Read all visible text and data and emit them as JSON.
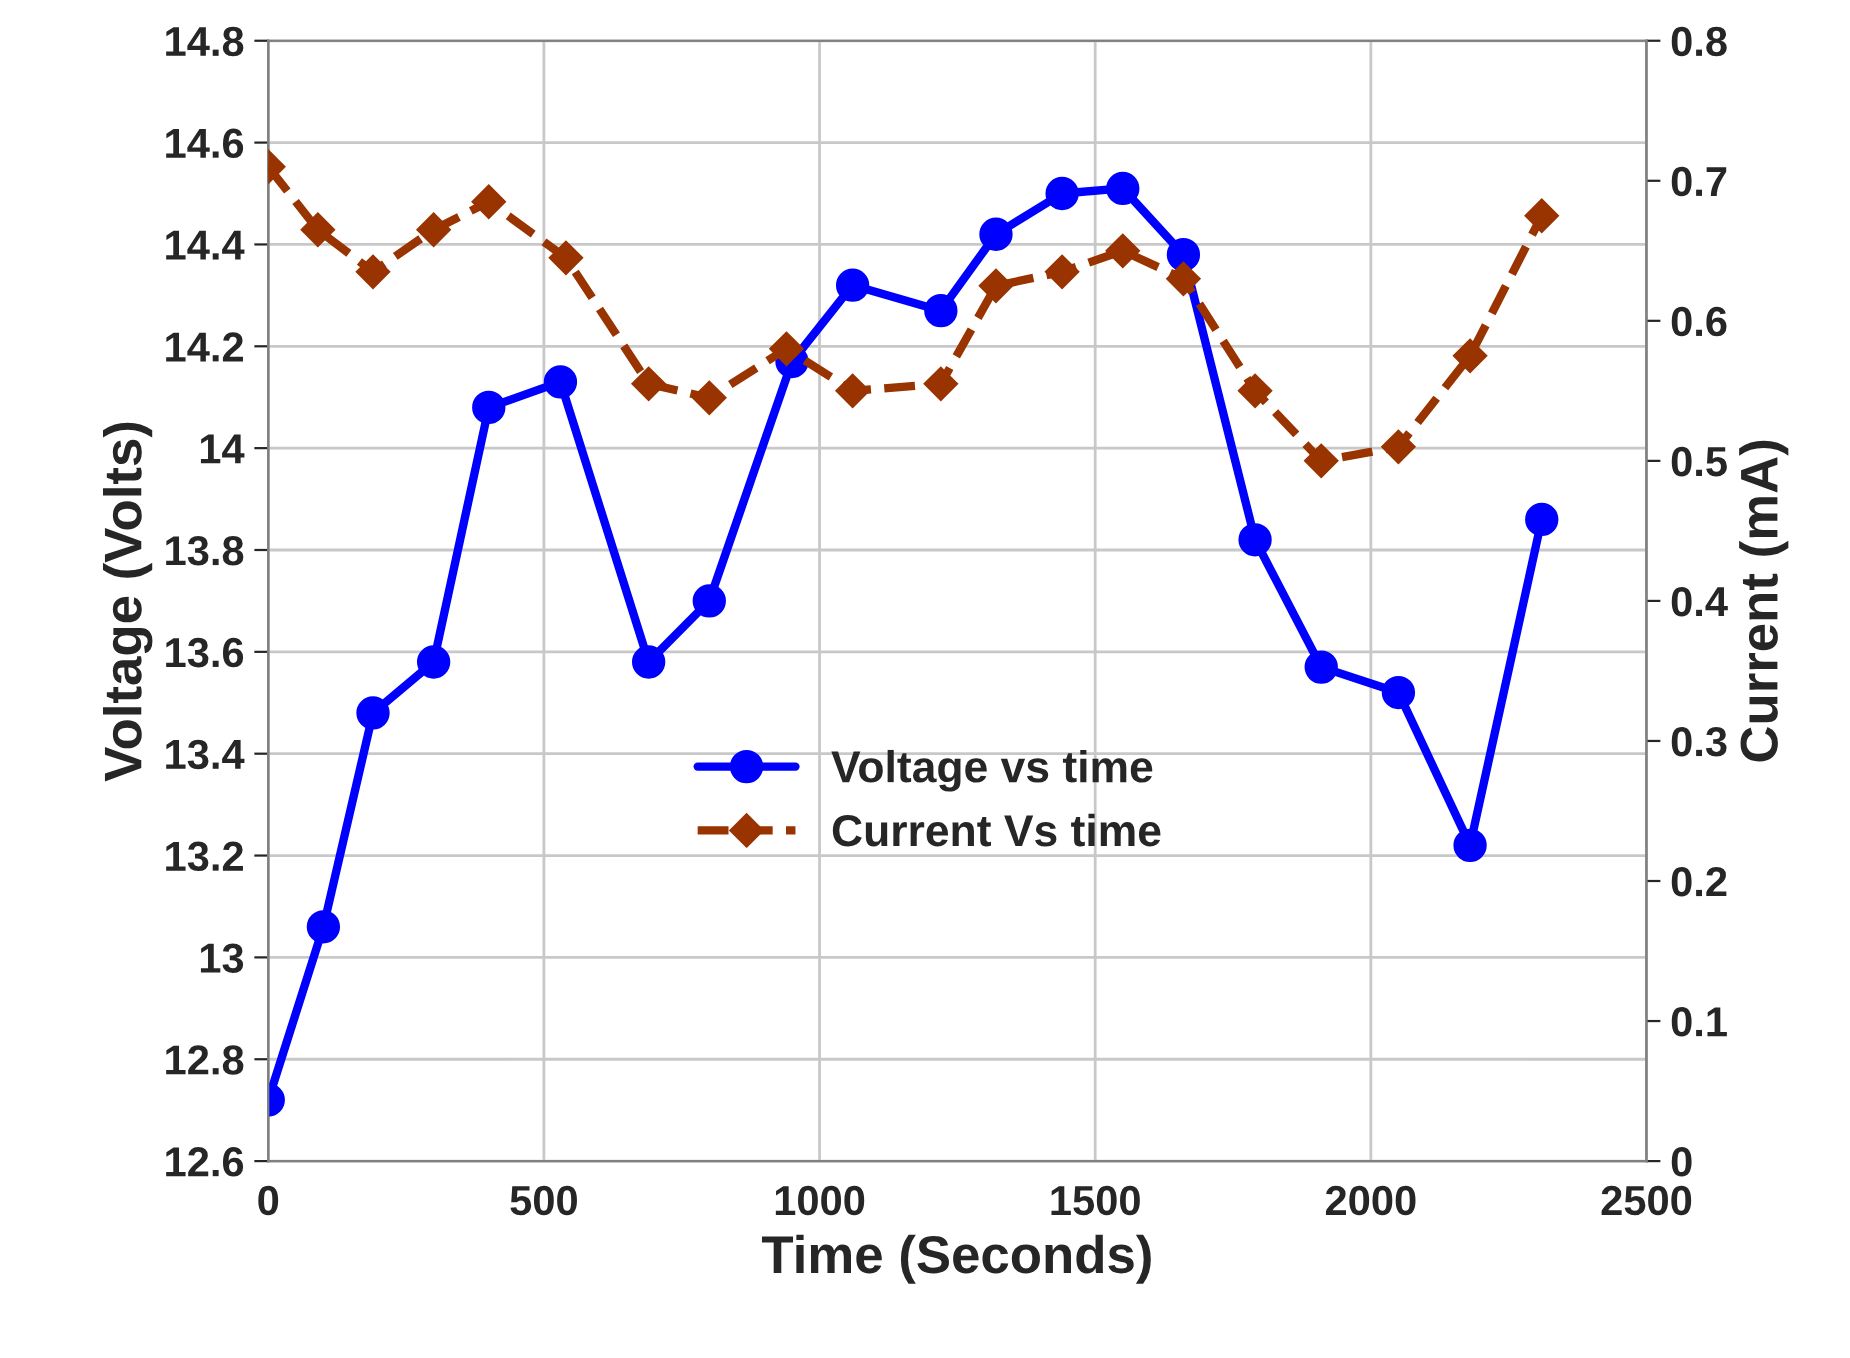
{
  "chart_data": {
    "type": "line",
    "xlabel": "Time (Seconds)",
    "ylabel": "Voltage (Volts)",
    "y2label": "Current (mA)",
    "xlim": [
      0,
      2500
    ],
    "xticks": [
      0,
      500,
      1000,
      1500,
      2000,
      2500
    ],
    "ylim": [
      12.6,
      14.8
    ],
    "yticks": [
      12.6,
      12.8,
      13,
      13.2,
      13.4,
      13.6,
      13.8,
      14,
      14.2,
      14.4,
      14.6,
      14.8
    ],
    "y2lim": [
      0,
      0.8
    ],
    "y2ticks": [
      0,
      0.1,
      0.2,
      0.3,
      0.4,
      0.5,
      0.6,
      0.7,
      0.8
    ],
    "grid": true,
    "legend": "center",
    "series": [
      {
        "name": "Voltage vs time",
        "color": "#0000ff",
        "marker": "circle",
        "line_style": "solid",
        "x": [
          0,
          100,
          190,
          300,
          400,
          530,
          690,
          800,
          950,
          1060,
          1220,
          1320,
          1440,
          1550,
          1660,
          1790,
          1910,
          2050,
          2180,
          2310
        ],
        "values": [
          12.72,
          13.06,
          13.48,
          13.58,
          14.08,
          14.13,
          13.58,
          13.7,
          14.17,
          14.32,
          14.27,
          14.42,
          14.5,
          14.51,
          14.38,
          13.82,
          13.57,
          13.52,
          13.22,
          13.86
        ]
      },
      {
        "name": "Current Vs time",
        "color": "#993300",
        "marker": "diamond",
        "line_style": "dashed",
        "axis": "y2",
        "x": [
          0,
          90,
          190,
          300,
          400,
          540,
          690,
          800,
          940,
          1060,
          1220,
          1320,
          1440,
          1550,
          1660,
          1790,
          1910,
          2050,
          2180,
          2310
        ],
        "values": [
          0.71,
          0.665,
          0.635,
          0.665,
          0.685,
          0.645,
          0.555,
          0.545,
          0.58,
          0.55,
          0.555,
          0.625,
          0.635,
          0.65,
          0.63,
          0.55,
          0.5,
          0.51,
          0.575,
          0.675
        ]
      }
    ]
  }
}
